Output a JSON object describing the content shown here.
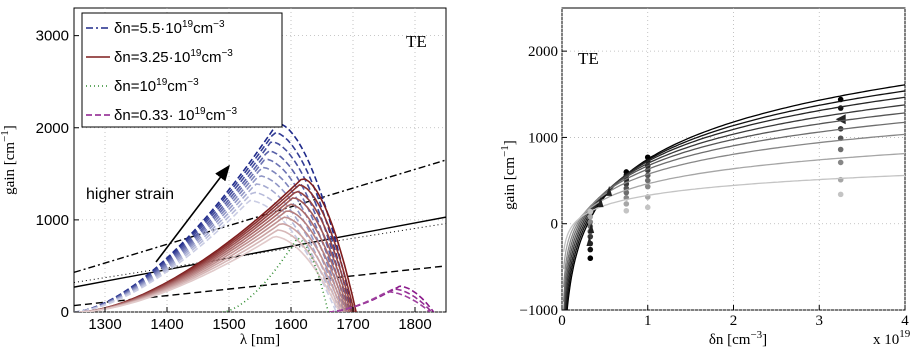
{
  "chart_data": [
    {
      "type": "line",
      "panel_label": "TE",
      "xlabel": "λ  [nm]",
      "ylabel": "gain [cm",
      "ylabel_sup": "−1",
      "ylabel_tail": "]",
      "xlim": [
        1250,
        1850
      ],
      "ylim": [
        0,
        3300
      ],
      "xticks": [
        1300,
        1400,
        1500,
        1600,
        1700,
        1800
      ],
      "yticks": [
        0,
        1000,
        2000,
        3000
      ],
      "grid": true,
      "legend_position": "top-left",
      "annotation": "higher strain",
      "legend": [
        {
          "base": "δn=5.5·10",
          "exp": "19",
          "unit": "cm",
          "unit_exp": "−3",
          "color": "#1f2a8a",
          "dash": "7 3 2 3"
        },
        {
          "base": "δn=3.25·10",
          "exp": "19",
          "unit": "cm",
          "unit_exp": "−3",
          "color": "#7f1d1d",
          "dash": ""
        },
        {
          "base": "δn=10",
          "exp": "19",
          "unit": "cm",
          "unit_exp": "−3",
          "color": "#2e8b2e",
          "dash": "1 3"
        },
        {
          "base": "δn=0.33· 10",
          "exp": "19",
          "unit": "cm",
          "unit_exp": "−3",
          "color": "#8b1a8b",
          "dash": "6 3"
        }
      ],
      "spectra": [
        {
          "series": "δn=5.5·10^19",
          "color": "#1f2a8a",
          "dash": "6 3",
          "peaks": [
            [
              1578,
              2050
            ],
            [
              1573,
              1950
            ],
            [
              1568,
              1850
            ],
            [
              1563,
              1750
            ],
            [
              1558,
              1660
            ],
            [
              1553,
              1570
            ],
            [
              1548,
              1480
            ],
            [
              1543,
              1390
            ],
            [
              1538,
              1300
            ],
            [
              1533,
              1210
            ]
          ],
          "start": 1250,
          "end": 1700
        },
        {
          "series": "δn=3.25·10^19",
          "color": "#7f1d1d",
          "dash": "",
          "peaks": [
            [
              1618,
              1450
            ],
            [
              1613,
              1380
            ],
            [
              1608,
              1310
            ],
            [
              1603,
              1240
            ],
            [
              1598,
              1170
            ],
            [
              1593,
              1100
            ],
            [
              1588,
              1030
            ],
            [
              1583,
              960
            ],
            [
              1578,
              890
            ],
            [
              1573,
              820
            ]
          ],
          "start": 1260,
          "end": 1705
        },
        {
          "series": "δn=0.33·10^19",
          "color": "#8b1a8b",
          "dash": "6 3",
          "peaks": [
            [
              1775,
              280
            ],
            [
              1765,
              250
            ],
            [
              1755,
              220
            ]
          ],
          "start": 1660,
          "end": 1830
        },
        {
          "series": "δn=10^19",
          "color": "#2e8b2e",
          "dash": "1 3",
          "peaks": [
            [
              1610,
              800
            ]
          ],
          "start": 1490,
          "end": 1660
        }
      ],
      "loss_lines": [
        {
          "x": [
            1250,
            1850
          ],
          "y": [
            430,
            1650
          ],
          "style": "dashdot"
        },
        {
          "x": [
            1250,
            1850
          ],
          "y": [
            270,
            1030
          ],
          "style": "solid"
        },
        {
          "x": [
            1250,
            1850
          ],
          "y": [
            70,
            500
          ],
          "style": "dashed"
        },
        {
          "x": [
            1250,
            1850
          ],
          "y": [
            320,
            960
          ],
          "style": "dotted"
        }
      ]
    },
    {
      "type": "line",
      "panel_label": "TE",
      "xlabel": "δn [cm",
      "xlabel_sup": "−3",
      "xlabel_tail": "]",
      "ylabel": "gain [cm",
      "ylabel_sup": "−1",
      "ylabel_tail": "]",
      "x_multiplier": "x 10",
      "x_multiplier_exp": "19",
      "xlim": [
        0,
        4
      ],
      "ylim": [
        -1000,
        2500
      ],
      "xticks": [
        0,
        1,
        2,
        3,
        4
      ],
      "yticks": [
        -1000,
        0,
        1000,
        2000
      ],
      "grid": true,
      "series": [
        {
          "gmax": 1600,
          "color": "#000000",
          "marks": [
            [
              0.33,
              -400
            ],
            [
              0.75,
              600
            ],
            [
              1.0,
              770
            ],
            [
              3.25,
              1440
            ]
          ],
          "marker": "circle"
        },
        {
          "gmax": 1490,
          "color": "#111111",
          "marks": [
            [
              0.33,
              -300
            ],
            [
              0.75,
              560
            ],
            [
              1.0,
              720
            ],
            [
              3.25,
              1340
            ]
          ],
          "marker": "circle"
        },
        {
          "gmax": 1380,
          "color": "#262626",
          "marks": [
            [
              0.33,
              -230
            ],
            [
              0.75,
              510
            ],
            [
              1.0,
              670
            ],
            [
              3.25,
              1210
            ]
          ],
          "marker": "triangle"
        },
        {
          "gmax": 1260,
          "color": "#3a3a3a",
          "marks": [
            [
              0.33,
              -150
            ],
            [
              0.75,
              460
            ],
            [
              1.0,
              620
            ],
            [
              3.25,
              1100
            ]
          ],
          "marker": "circle"
        },
        {
          "gmax": 1140,
          "color": "#555555",
          "marks": [
            [
              0.33,
              -90
            ],
            [
              0.75,
              410
            ],
            [
              1.0,
              560
            ],
            [
              3.25,
              990
            ]
          ],
          "marker": "circle"
        },
        {
          "gmax": 1010,
          "color": "#6e6e6e",
          "marks": [
            [
              0.33,
              -30
            ],
            [
              0.75,
              360
            ],
            [
              1.0,
              500
            ],
            [
              3.25,
              860
            ]
          ],
          "marker": "circle"
        },
        {
          "gmax": 860,
          "color": "#878787",
          "marks": [
            [
              0.33,
              20
            ],
            [
              0.75,
              300
            ],
            [
              1.0,
              430
            ],
            [
              3.25,
              710
            ]
          ],
          "marker": "circle"
        },
        {
          "gmax": 650,
          "color": "#a6a6a6",
          "marks": [
            [
              0.33,
              80
            ],
            [
              0.75,
              230
            ],
            [
              1.0,
              310
            ],
            [
              3.25,
              510
            ]
          ],
          "marker": "circle"
        },
        {
          "gmax": 430,
          "color": "#c4c4c4",
          "marks": [
            [
              0.33,
              140
            ],
            [
              0.75,
              150
            ],
            [
              1.0,
              190
            ],
            [
              3.25,
              340
            ]
          ],
          "marker": "circle"
        }
      ]
    }
  ]
}
